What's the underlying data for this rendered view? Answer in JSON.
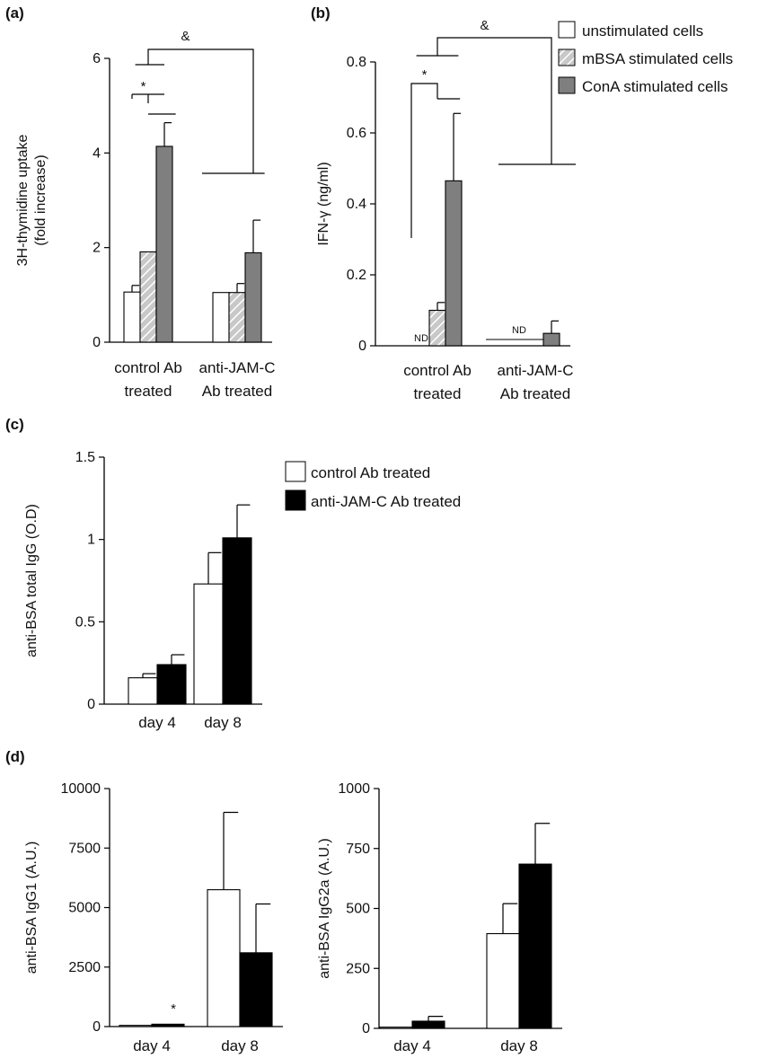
{
  "colors": {
    "unstimulated": "#ffffff",
    "mbsa": "#c8c8c8",
    "mbsa_hatch": "#ffffff",
    "cona": "#7f7f7f",
    "control": "#ffffff",
    "antijamc": "#000000",
    "stroke": "#000000"
  },
  "chart_data": [
    {
      "id": "a",
      "panel_label": "(a)",
      "type": "bar",
      "ylabel_lines": [
        "3H-thymidine uptake",
        "(fold increase)"
      ],
      "ylim": [
        0,
        6
      ],
      "yticks": [
        0,
        2,
        4,
        6
      ],
      "ytick_labels": [
        "0",
        "2",
        "4",
        "6"
      ],
      "categories": [
        [
          "control Ab",
          "treated"
        ],
        [
          "anti-JAM-C",
          "Ab treated"
        ]
      ],
      "series": [
        {
          "name": "unstimulated cells",
          "style": "unstimulated",
          "values": [
            1.06,
            1.05
          ],
          "errors": [
            0.14,
            0.0
          ]
        },
        {
          "name": "mBSA stimulated cells",
          "style": "mbsa",
          "values": [
            1.91,
            1.05
          ],
          "errors": [
            0.0,
            0.19
          ]
        },
        {
          "name": "ConA stimulated cells",
          "style": "cona",
          "values": [
            4.14,
            1.89
          ],
          "errors": [
            0.5,
            0.69
          ]
        }
      ],
      "annotations": {
        "star": "*",
        "amp": "&"
      }
    },
    {
      "id": "b",
      "panel_label": "(b)",
      "type": "bar",
      "ylabel": "IFN-γ (ng/ml)",
      "ylim": [
        0,
        0.8
      ],
      "yticks": [
        0,
        0.2,
        0.4,
        0.6,
        0.8
      ],
      "ytick_labels": [
        "0",
        "0.2",
        "0.4",
        "0.6",
        "0.8"
      ],
      "categories": [
        [
          "control Ab",
          "treated"
        ],
        [
          "anti-JAM-C",
          "Ab treated"
        ]
      ],
      "series": [
        {
          "name": "unstimulated cells",
          "style": "unstimulated",
          "values": [
            0,
            0
          ],
          "errors": [
            0,
            0
          ]
        },
        {
          "name": "mBSA stimulated cells",
          "style": "mbsa",
          "values": [
            0.1,
            0.0
          ],
          "errors": [
            0.022,
            0
          ]
        },
        {
          "name": "ConA stimulated cells",
          "style": "cona",
          "values": [
            0.465,
            0.035
          ],
          "errors": [
            0.19,
            0.035
          ]
        }
      ],
      "nd_label": "ND",
      "annotations": {
        "star": "*",
        "amp": "&"
      },
      "legend": [
        "unstimulated cells",
        "mBSA stimulated cells",
        "ConA stimulated cells"
      ]
    },
    {
      "id": "c",
      "panel_label": "(c)",
      "type": "bar",
      "ylabel": "anti-BSA total IgG (O.D)",
      "ylim": [
        0,
        1.5
      ],
      "yticks": [
        0,
        0.5,
        1,
        1.5
      ],
      "ytick_labels": [
        "0",
        "0.5",
        "1",
        "1.5"
      ],
      "categories": [
        "day 4",
        "day 8"
      ],
      "series": [
        {
          "name": "control Ab treated",
          "style": "control",
          "values": [
            0.16,
            0.73
          ],
          "errors": [
            0.025,
            0.19
          ]
        },
        {
          "name": "anti-JAM-C Ab treated",
          "style": "antijamc",
          "values": [
            0.24,
            1.01
          ],
          "errors": [
            0.06,
            0.2
          ]
        }
      ],
      "legend": [
        "control Ab treated",
        "anti-JAM-C Ab treated"
      ]
    },
    {
      "id": "d1",
      "panel_label": "(d)",
      "type": "bar",
      "ylabel": "anti-BSA IgG1 (A.U.)",
      "ylim": [
        0,
        10000
      ],
      "yticks": [
        0,
        2500,
        5000,
        7500,
        10000
      ],
      "ytick_labels": [
        "0",
        "2500",
        "5000",
        "7500",
        "10000"
      ],
      "categories": [
        "day 4",
        "day 8"
      ],
      "series": [
        {
          "name": "control Ab treated",
          "style": "control",
          "values": [
            50,
            5750
          ],
          "errors": [
            0,
            3250
          ]
        },
        {
          "name": "anti-JAM-C Ab treated",
          "style": "antijamc",
          "values": [
            100,
            3100
          ],
          "errors": [
            0,
            2050
          ]
        }
      ],
      "annotations": {
        "star": "*"
      }
    },
    {
      "id": "d2",
      "panel_label": "",
      "type": "bar",
      "ylabel": "anti-BSA IgG2a (A.U.)",
      "ylim": [
        0,
        1000
      ],
      "yticks": [
        0,
        250,
        500,
        750,
        1000
      ],
      "ytick_labels": [
        "0",
        "250",
        "500",
        "750",
        "1000"
      ],
      "categories": [
        "day 4",
        "day 8"
      ],
      "series": [
        {
          "name": "control Ab treated",
          "style": "control",
          "values": [
            5,
            395
          ],
          "errors": [
            0,
            125
          ]
        },
        {
          "name": "anti-JAM-C Ab treated",
          "style": "antijamc",
          "values": [
            30,
            685
          ],
          "errors": [
            20,
            170
          ]
        }
      ]
    }
  ]
}
